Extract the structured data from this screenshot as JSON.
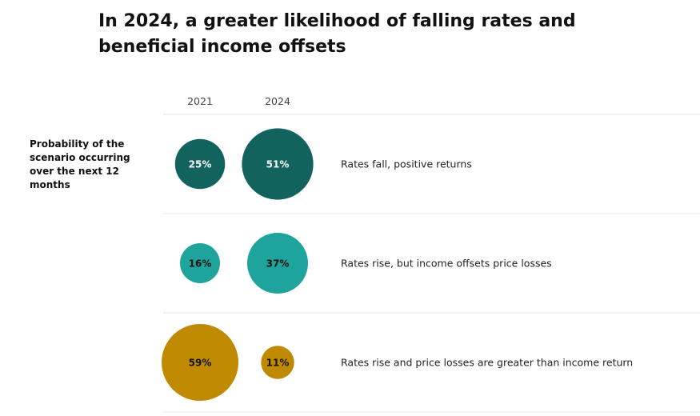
{
  "chart_data": {
    "type": "bubble",
    "title": "In 2024, a greater likelihood of falling rates and beneficial income offsets",
    "row_label": "Probability of the scenario occurring over the next 12 months",
    "categories": [
      "2021",
      "2024"
    ],
    "unit": "%",
    "colors": {
      "dark_teal": "#12635e",
      "teal": "#1ea49c",
      "gold": "#c08a00",
      "grid": "#e4e4e4"
    },
    "series": [
      {
        "name": "Rates fall, positive returns",
        "values": [
          25,
          51
        ],
        "color": "#12635e",
        "label_color": "#ffffff"
      },
      {
        "name": "Rates rise, but income offsets price losses",
        "values": [
          16,
          37
        ],
        "color": "#1ea49c",
        "label_color": "#111111"
      },
      {
        "name": "Rates rise and price losses are greater than income return",
        "values": [
          59,
          11
        ],
        "color": "#c08a00",
        "label_color": "#111111"
      }
    ]
  }
}
